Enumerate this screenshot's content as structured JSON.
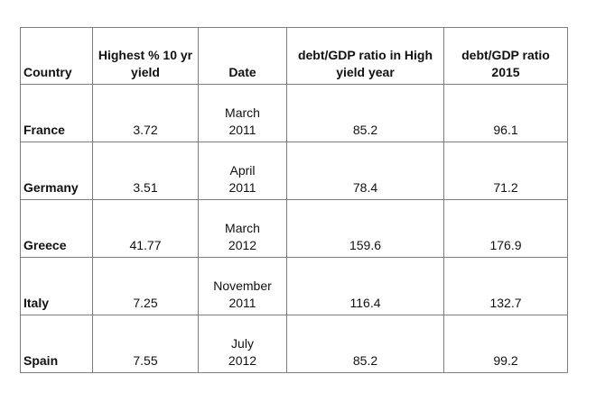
{
  "colors": {
    "page_bg": "#ffffff",
    "border": "#7f7f7f",
    "text": "#111111"
  },
  "table": {
    "header": {
      "country": "Country",
      "yield_line1": "Highest % 10 yr",
      "yield_line2": "yield",
      "date": "Date",
      "ratio_high_line1": "debt/GDP ratio in High",
      "ratio_high_line2": "yield year",
      "ratio_2015_line1": "debt/GDP ratio",
      "ratio_2015_line2": "2015"
    },
    "rows": [
      {
        "country": "France",
        "yield": "3.72",
        "month": "March",
        "year": "2011",
        "ratio_high": "85.2",
        "ratio_2015": "96.1"
      },
      {
        "country": "Germany",
        "yield": "3.51",
        "month": "April",
        "year": "2011",
        "ratio_high": "78.4",
        "ratio_2015": "71.2"
      },
      {
        "country": "Greece",
        "yield": "41.77",
        "month": "March",
        "year": "2012",
        "ratio_high": "159.6",
        "ratio_2015": "176.9"
      },
      {
        "country": "Italy",
        "yield": "7.25",
        "month": "November",
        "year": "2011",
        "ratio_high": "116.4",
        "ratio_2015": "132.7"
      },
      {
        "country": "Spain",
        "yield": "7.55",
        "month": "July",
        "year": "2012",
        "ratio_high": "85.2",
        "ratio_2015": "99.2"
      }
    ]
  },
  "chart_data": {
    "type": "table",
    "title": "",
    "columns": [
      "Country",
      "Highest % 10 yr yield",
      "Date",
      "debt/GDP ratio in High yield year",
      "debt/GDP ratio 2015"
    ],
    "rows": [
      [
        "France",
        3.72,
        "March 2011",
        85.2,
        96.1
      ],
      [
        "Germany",
        3.51,
        "April 2011",
        78.4,
        71.2
      ],
      [
        "Greece",
        41.77,
        "March 2012",
        159.6,
        176.9
      ],
      [
        "Italy",
        7.25,
        "November 2011",
        116.4,
        132.7
      ],
      [
        "Spain",
        7.55,
        "July 2012",
        85.2,
        99.2
      ]
    ]
  }
}
